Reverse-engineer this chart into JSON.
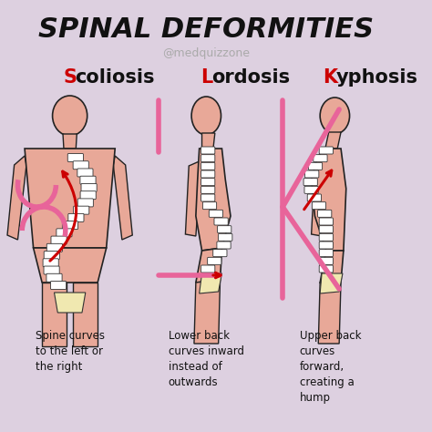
{
  "background_color": "#ddd0e0",
  "title": "SPINAL DEFORMITIES",
  "subtitle": "@medquizzone",
  "title_color": "#111111",
  "subtitle_color": "#aaaaaa",
  "title_fontsize": 22,
  "subtitle_fontsize": 9,
  "condition_first_letters": [
    "S",
    "L",
    "K"
  ],
  "condition_rest": [
    "coliosis",
    "ordosis",
    "yphosis"
  ],
  "letter_color": "#cc0000",
  "rest_color": "#111111",
  "condition_fontsize": 15,
  "descriptions": [
    "Spine curves\nto the left or\nthe right",
    "Lower back\ncurves inward\ninstead of\noutwards",
    "Upper back\ncurves\nforward,\ncreating a\nhump"
  ],
  "desc_fontsize": 8.5,
  "desc_color": "#111111",
  "pink_color": "#e8649a",
  "red_color": "#cc0000",
  "body_color": "#e8a898",
  "body_outline": "#222222",
  "spine_white": "#ffffff",
  "spine_outline": "#333333",
  "pelvis_color": "#f0e8b0"
}
